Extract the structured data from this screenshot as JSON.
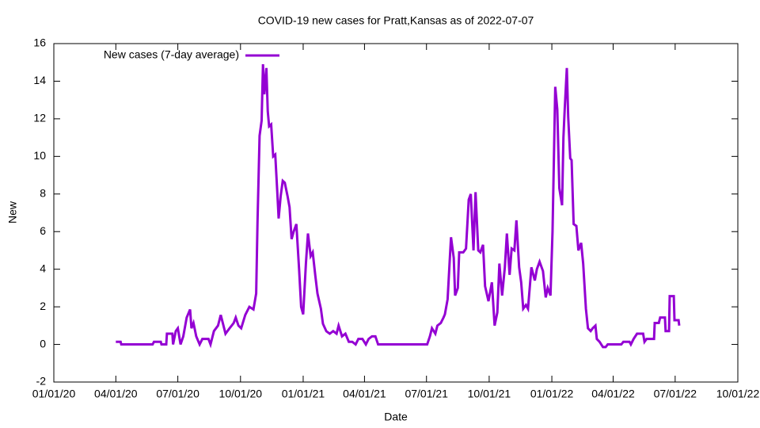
{
  "chart_data": {
    "type": "line",
    "title": "COVID-19 new cases for Pratt,Kansas as of 2022-07-07",
    "x_label": "Date",
    "y_label": "New",
    "legend": "top-left",
    "x": [
      "2020-04-01",
      "2020-04-08",
      "2020-04-09",
      "2020-05-25",
      "2020-05-27",
      "2020-06-06",
      "2020-06-07",
      "2020-06-14",
      "2020-06-15",
      "2020-06-23",
      "2020-06-24",
      "2020-06-28",
      "2020-07-01",
      "2020-07-05",
      "2020-07-09",
      "2020-07-14",
      "2020-07-19",
      "2020-07-21",
      "2020-07-24",
      "2020-07-28",
      "2020-08-02",
      "2020-08-06",
      "2020-08-15",
      "2020-08-18",
      "2020-08-23",
      "2020-08-29",
      "2020-09-02",
      "2020-09-06",
      "2020-09-09",
      "2020-09-15",
      "2020-09-21",
      "2020-09-24",
      "2020-09-28",
      "2020-10-02",
      "2020-10-08",
      "2020-10-14",
      "2020-10-20",
      "2020-10-24",
      "2020-10-26",
      "2020-10-29",
      "2020-11-01",
      "2020-11-03",
      "2020-11-05",
      "2020-11-08",
      "2020-11-10",
      "2020-11-12",
      "2020-11-15",
      "2020-11-18",
      "2020-11-21",
      "2020-11-24",
      "2020-11-26",
      "2020-11-29",
      "2020-12-02",
      "2020-12-05",
      "2020-12-09",
      "2020-12-12",
      "2020-12-15",
      "2020-12-18",
      "2020-12-22",
      "2020-12-26",
      "2020-12-29",
      "2021-01-01",
      "2021-01-05",
      "2021-01-08",
      "2021-01-12",
      "2021-01-15",
      "2021-01-19",
      "2021-01-22",
      "2021-01-27",
      "2021-01-30",
      "2021-02-04",
      "2021-02-09",
      "2021-02-14",
      "2021-02-19",
      "2021-02-22",
      "2021-02-27",
      "2021-03-04",
      "2021-03-09",
      "2021-03-14",
      "2021-03-19",
      "2021-03-23",
      "2021-03-29",
      "2021-04-03",
      "2021-04-07",
      "2021-04-12",
      "2021-04-17",
      "2021-04-21",
      "2021-07-02",
      "2021-07-06",
      "2021-07-09",
      "2021-07-14",
      "2021-07-17",
      "2021-07-22",
      "2021-07-26",
      "2021-07-28",
      "2021-08-01",
      "2021-08-04",
      "2021-08-06",
      "2021-08-10",
      "2021-08-12",
      "2021-08-16",
      "2021-08-18",
      "2021-08-24",
      "2021-08-28",
      "2021-09-01",
      "2021-09-04",
      "2021-09-08",
      "2021-09-11",
      "2021-09-15",
      "2021-09-18",
      "2021-09-22",
      "2021-09-25",
      "2021-09-30",
      "2021-10-05",
      "2021-10-09",
      "2021-10-13",
      "2021-10-16",
      "2021-10-20",
      "2021-10-24",
      "2021-10-27",
      "2021-10-31",
      "2021-11-03",
      "2021-11-07",
      "2021-11-10",
      "2021-11-14",
      "2021-11-17",
      "2021-11-20",
      "2021-11-24",
      "2021-11-27",
      "2021-12-02",
      "2021-12-07",
      "2021-12-10",
      "2021-12-14",
      "2021-12-19",
      "2021-12-23",
      "2021-12-26",
      "2021-12-30",
      "2022-01-02",
      "2022-01-06",
      "2022-01-09",
      "2022-01-12",
      "2022-01-16",
      "2022-01-18",
      "2022-01-20",
      "2022-01-23",
      "2022-01-25",
      "2022-01-28",
      "2022-01-30",
      "2022-02-02",
      "2022-02-06",
      "2022-02-09",
      "2022-02-13",
      "2022-02-16",
      "2022-02-20",
      "2022-02-23",
      "2022-02-27",
      "2022-03-02",
      "2022-03-06",
      "2022-03-08",
      "2022-03-12",
      "2022-03-17",
      "2022-03-21",
      "2022-03-24",
      "2022-04-13",
      "2022-04-16",
      "2022-04-25",
      "2022-04-27",
      "2022-05-01",
      "2022-05-06",
      "2022-05-15",
      "2022-05-17",
      "2022-05-20",
      "2022-05-31",
      "2022-06-01",
      "2022-06-07",
      "2022-06-09",
      "2022-06-16",
      "2022-06-17",
      "2022-06-22",
      "2022-06-23",
      "2022-06-29",
      "2022-06-30",
      "2022-07-06",
      "2022-07-07"
    ],
    "series": [
      {
        "name": "New cases (7-day average)",
        "color": "#9400d3",
        "values": [
          0.14,
          0.14,
          0,
          0,
          0.14,
          0.14,
          0,
          0,
          0.57,
          0.57,
          0,
          0.71,
          0.86,
          0,
          0.43,
          1.43,
          1.86,
          0.86,
          1.14,
          0.43,
          0,
          0.29,
          0.29,
          0,
          0.71,
          1.0,
          1.57,
          1.0,
          0.57,
          0.86,
          1.14,
          1.43,
          1.0,
          0.86,
          1.57,
          2.0,
          1.86,
          2.71,
          6.57,
          11.1,
          11.9,
          14.9,
          13.3,
          14.7,
          12.4,
          11.6,
          11.7,
          10.0,
          10.1,
          8.1,
          6.7,
          7.9,
          8.7,
          8.6,
          7.9,
          7.3,
          5.6,
          6.0,
          6.4,
          4.0,
          2.0,
          1.6,
          4.3,
          5.9,
          4.7,
          4.9,
          3.6,
          2.7,
          1.9,
          1.1,
          0.7,
          0.57,
          0.71,
          0.57,
          1.0,
          0.43,
          0.57,
          0.14,
          0.14,
          0,
          0.29,
          0.29,
          0,
          0.29,
          0.43,
          0.43,
          0,
          0,
          0.43,
          0.86,
          0.57,
          1.0,
          1.14,
          1.43,
          1.6,
          2.4,
          4.4,
          5.7,
          4.6,
          2.6,
          3.0,
          4.9,
          4.9,
          5.1,
          7.7,
          8.0,
          5.0,
          8.1,
          5.0,
          4.9,
          5.3,
          3.1,
          2.3,
          3.3,
          1.0,
          1.7,
          4.3,
          2.6,
          4.1,
          5.9,
          3.7,
          5.1,
          5.0,
          6.6,
          4.1,
          3.3,
          1.9,
          2.1,
          1.9,
          4.1,
          3.4,
          4.0,
          4.4,
          3.9,
          2.5,
          3.0,
          2.6,
          6.0,
          13.7,
          12.5,
          8.3,
          7.4,
          11.0,
          12.6,
          14.7,
          12.1,
          9.9,
          9.8,
          6.4,
          6.3,
          5.0,
          5.4,
          4.3,
          1.9,
          0.86,
          0.71,
          0.86,
          1.0,
          0.29,
          0.14,
          -0.14,
          -0.14,
          0,
          0,
          0.14,
          0.14,
          0,
          0.29,
          0.57,
          0.57,
          0.14,
          0.29,
          0.29,
          1.14,
          1.14,
          1.43,
          1.43,
          0.71,
          0.71,
          2.57,
          2.57,
          1.29,
          1.29,
          1.0
        ]
      }
    ],
    "xlim": [
      "2020-01-01",
      "2022-10-01"
    ],
    "xticks": [
      {
        "value": "2020-01-01",
        "label": "01/01/20"
      },
      {
        "value": "2020-04-01",
        "label": "04/01/20"
      },
      {
        "value": "2020-07-01",
        "label": "07/01/20"
      },
      {
        "value": "2020-10-01",
        "label": "10/01/20"
      },
      {
        "value": "2021-01-01",
        "label": "01/01/21"
      },
      {
        "value": "2021-04-01",
        "label": "04/01/21"
      },
      {
        "value": "2021-07-01",
        "label": "07/01/21"
      },
      {
        "value": "2021-10-01",
        "label": "10/01/21"
      },
      {
        "value": "2022-01-01",
        "label": "01/01/22"
      },
      {
        "value": "2022-04-01",
        "label": "04/01/22"
      },
      {
        "value": "2022-07-01",
        "label": "07/01/22"
      },
      {
        "value": "2022-10-01",
        "label": "10/01/22"
      }
    ],
    "ylim": [
      -2,
      16
    ],
    "yticks": [
      -2,
      0,
      2,
      4,
      6,
      8,
      10,
      12,
      14,
      16
    ]
  }
}
